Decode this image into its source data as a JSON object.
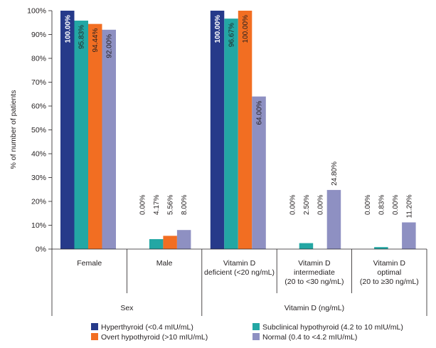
{
  "chart_data": {
    "type": "bar",
    "ylabel": "% of number of patients",
    "ylim": [
      0,
      100
    ],
    "yticks": [
      "0%",
      "10%",
      "20%",
      "30%",
      "40%",
      "50%",
      "60%",
      "70%",
      "80%",
      "90%",
      "100%"
    ],
    "groups": [
      {
        "name": "Sex",
        "categories": [
          "Female",
          "Male"
        ],
        "category_lines": [
          [
            "Female"
          ],
          [
            "Male"
          ]
        ]
      },
      {
        "name": "Vitamin D (ng/mL)",
        "categories": [
          "Vitamin D deficient (<20 ng/mL)",
          "Vitamin D intermediate (20 to <30 ng/mL)",
          "Vitamin D optimal (20 to ≥30 ng/mL)"
        ],
        "category_lines": [
          [
            "Vitamin D",
            "deficient (<20 ng/mL)"
          ],
          [
            "Vitamin D",
            "intermediate",
            "(20 to <30 ng/mL)"
          ],
          [
            "Vitamin D",
            "optimal",
            "(20 to ≥30 ng/mL)"
          ]
        ]
      }
    ],
    "series": [
      {
        "name": "Hyperthyroid (<0.4 mIU/mL)",
        "color": "#263a8a",
        "values": [
          100.0,
          0.0,
          100.0,
          0.0,
          0.0
        ],
        "labels": [
          "100.00%",
          "0.00%",
          "100.00%",
          "0.00%",
          "0.00%"
        ]
      },
      {
        "name": "Subclinical hypothyroid (4.2 to 10 mIU/mL)",
        "color": "#23a7a4",
        "values": [
          95.83,
          4.17,
          96.67,
          2.5,
          0.83
        ],
        "labels": [
          "95.83%",
          "4.17%",
          "96.67%",
          "2.50%",
          "0.83%"
        ]
      },
      {
        "name": "Overt hypothyroid (>10 mIU/mL)",
        "color": "#f26e22",
        "values": [
          94.44,
          5.56,
          100.0,
          0.0,
          0.0
        ],
        "labels": [
          "94.44%",
          "5.56%",
          "100.00%",
          "0.00%",
          "0.00%"
        ]
      },
      {
        "name": "Normal (0.4 to <4.2 mIU/mL)",
        "color": "#8e90c2",
        "values": [
          92.0,
          8.0,
          64.0,
          24.8,
          11.2
        ],
        "labels": [
          "92.00%",
          "8.00%",
          "64.00%",
          "24.80%",
          "11.20%"
        ]
      }
    ]
  }
}
